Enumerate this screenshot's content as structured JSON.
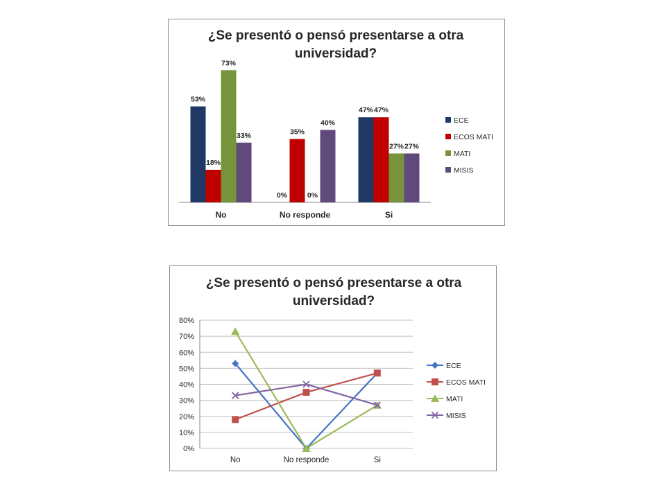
{
  "chart_data": [
    {
      "type": "bar",
      "title_lines": [
        "¿Se presentó o pensó presentarse a otra",
        "universidad?"
      ],
      "categories": [
        "No",
        "No responde",
        "Si"
      ],
      "series": [
        {
          "name": "ECE",
          "color": "#1f3864",
          "values": [
            53,
            0,
            47
          ],
          "labels": [
            "53%",
            "0%",
            "47%"
          ]
        },
        {
          "name": "ECOS MATI",
          "color": "#c00000",
          "values": [
            18,
            35,
            47
          ],
          "labels": [
            "18%",
            "35%",
            "47%"
          ]
        },
        {
          "name": "MATI",
          "color": "#77933c",
          "values": [
            73,
            0,
            27
          ],
          "labels": [
            "73%",
            "0%",
            "27%"
          ]
        },
        {
          "name": "MISIS",
          "color": "#604a7b",
          "values": [
            33,
            40,
            27
          ],
          "labels": [
            "33%",
            "40%",
            "27%"
          ]
        }
      ],
      "ylim": [
        0,
        80
      ],
      "legend_position": "right",
      "grid": false
    },
    {
      "type": "line",
      "title_lines": [
        "¿Se presentó o pensó presentarse a otra",
        "universidad?"
      ],
      "categories": [
        "No",
        "No responde",
        "Si"
      ],
      "y_ticks": [
        "0%",
        "10%",
        "20%",
        "30%",
        "40%",
        "50%",
        "60%",
        "70%",
        "80%"
      ],
      "series": [
        {
          "name": "ECE",
          "color": "#4472c4",
          "marker": "diamond",
          "values": [
            53,
            0,
            47
          ]
        },
        {
          "name": "ECOS MATI",
          "color": "#c0504d",
          "marker": "square",
          "values": [
            18,
            35,
            47
          ]
        },
        {
          "name": "MATI",
          "color": "#9bbb59",
          "marker": "triangle",
          "values": [
            73,
            0,
            27
          ]
        },
        {
          "name": "MISIS",
          "color": "#8064a2",
          "marker": "x",
          "values": [
            33,
            40,
            27
          ]
        }
      ],
      "ylim": [
        0,
        80
      ],
      "legend_position": "right",
      "grid": true
    }
  ]
}
